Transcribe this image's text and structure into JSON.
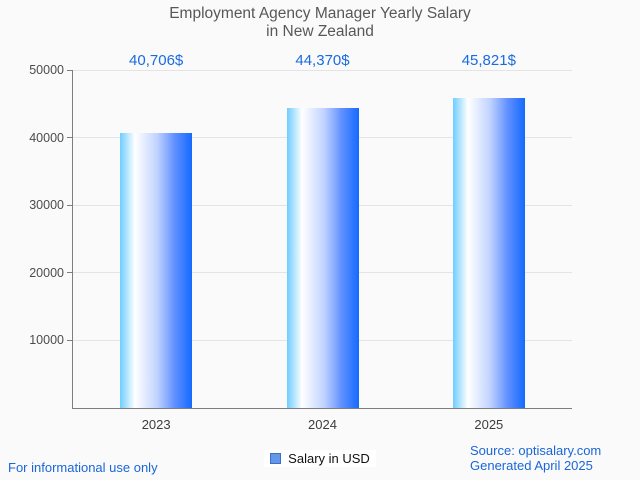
{
  "title": {
    "line1": "Employment Agency Manager Yearly Salary",
    "line2": "in New Zealand"
  },
  "chart_data": {
    "type": "bar",
    "title": "Employment Agency Manager Yearly Salary in New Zealand",
    "categories": [
      "2023",
      "2024",
      "2025"
    ],
    "series": [
      {
        "name": "Salary in USD",
        "values": [
          40706,
          44370,
          45821
        ]
      }
    ],
    "value_labels": [
      "40,706$",
      "44,370$",
      "45,821$"
    ],
    "xlabel": "",
    "ylabel": "",
    "ylim": [
      0,
      50000
    ],
    "yticks": [
      10000,
      20000,
      30000,
      40000,
      50000
    ],
    "ytick_labels": [
      "10000",
      "20000",
      "30000",
      "40000",
      "50000"
    ],
    "grid": "horizontal",
    "legend_position": "bottom"
  },
  "legend": {
    "label": "Salary in USD",
    "swatch_fill": "#6497e7",
    "swatch_border": "#3f6fc4"
  },
  "footer": {
    "disclaimer": "For informational use only",
    "source": "Source: optisalary.com",
    "generated": "Generated April 2025"
  },
  "colors": {
    "title": "#58585a",
    "tick_label": "#4c4c4c",
    "category_label": "#3d3d3d",
    "value_label": "#1a6be0",
    "link": "#1a66d9",
    "grid_line": "#e4e4e4",
    "axis_line": "#7d7d7d",
    "bar_gradient": [
      "#6fcdff",
      "#ffffff",
      "#bfd2ff",
      "#6090ff",
      "#146aff"
    ]
  }
}
